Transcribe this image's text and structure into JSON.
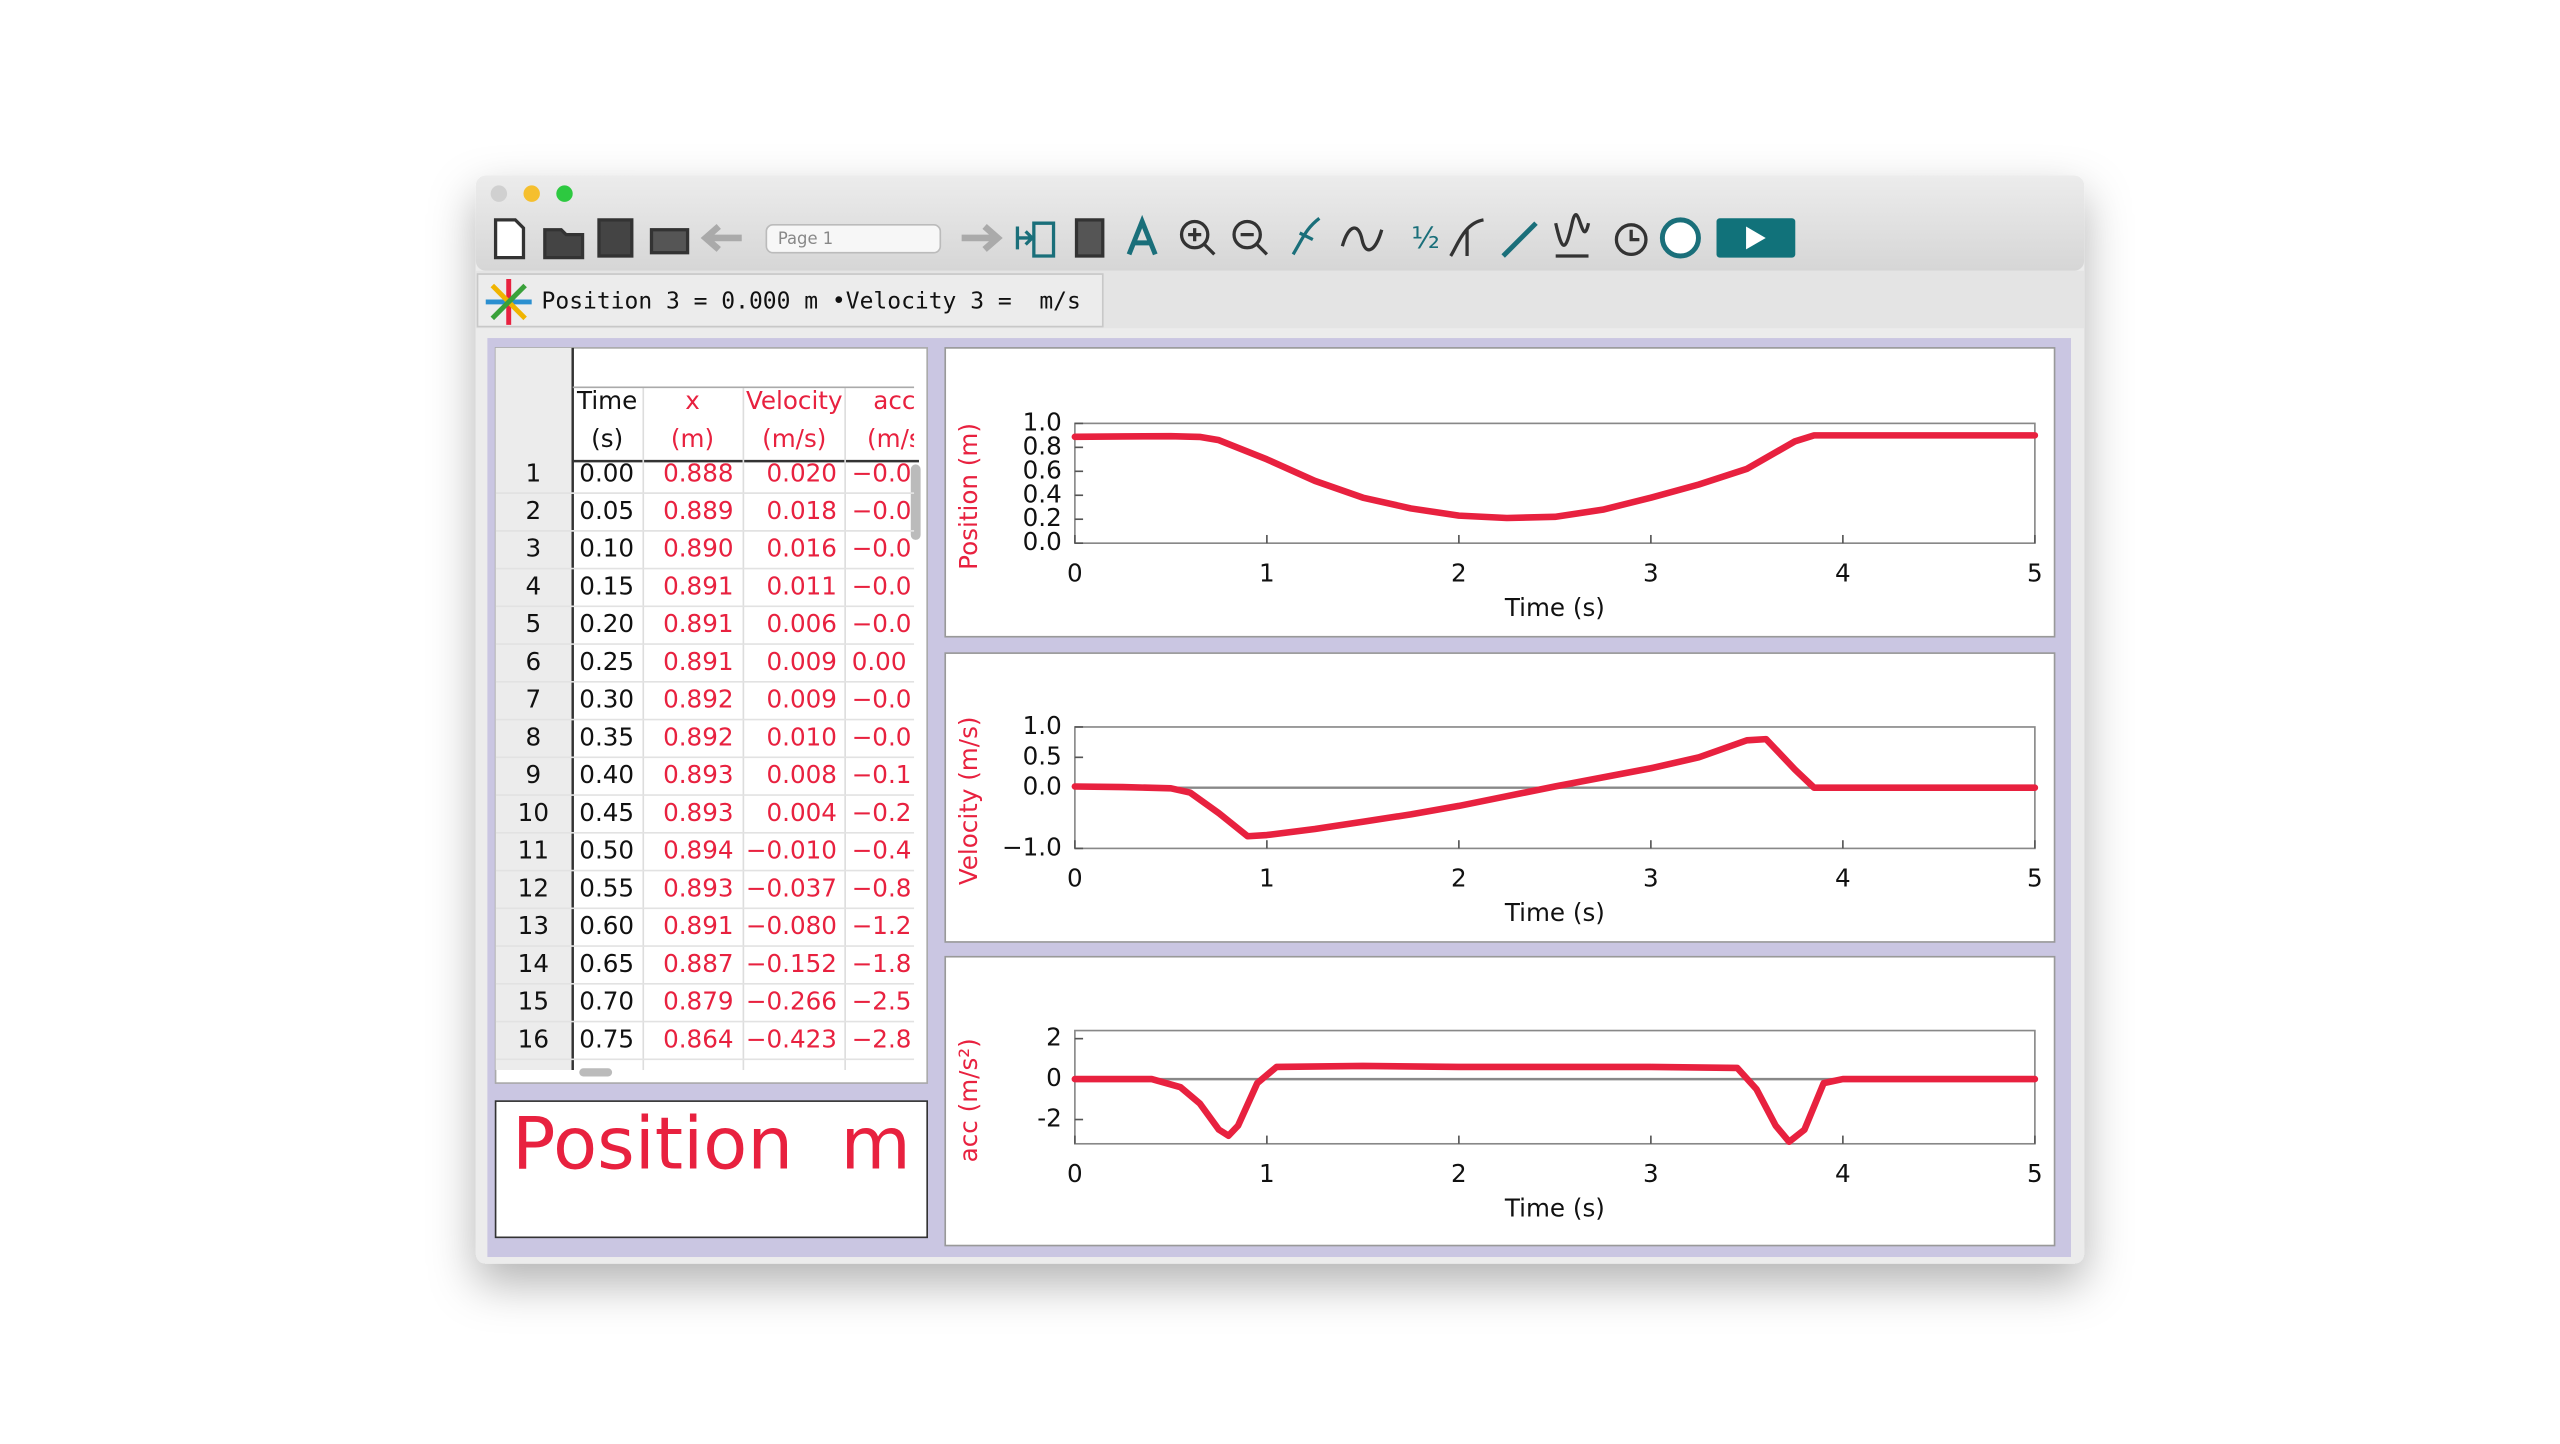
{
  "toolbar": {
    "page_selector": "Page 1"
  },
  "status_bar": {
    "text": "Position 3 = 0.000 m •Velocity 3 =  m/s"
  },
  "table": {
    "columns": [
      {
        "name": "Time",
        "unit": "(s)"
      },
      {
        "name": "x",
        "unit": "(m)"
      },
      {
        "name": "Velocity",
        "unit": "(m/s)"
      },
      {
        "name": "acc",
        "unit": "(m/s"
      }
    ],
    "row_labels": [
      "1",
      "2",
      "3",
      "4",
      "5",
      "6",
      "7",
      "8",
      "9",
      "10",
      "11",
      "12",
      "13",
      "14",
      "15",
      "16"
    ],
    "rows": [
      [
        "0.00",
        "0.888",
        "0.020",
        "−0.0"
      ],
      [
        "0.05",
        "0.889",
        "0.018",
        "−0.0"
      ],
      [
        "0.10",
        "0.890",
        "0.016",
        "−0.0"
      ],
      [
        "0.15",
        "0.891",
        "0.011",
        "−0.0"
      ],
      [
        "0.20",
        "0.891",
        "0.006",
        "−0.0"
      ],
      [
        "0.25",
        "0.891",
        "0.009",
        "0.00"
      ],
      [
        "0.30",
        "0.892",
        "0.009",
        "−0.0"
      ],
      [
        "0.35",
        "0.892",
        "0.010",
        "−0.0"
      ],
      [
        "0.40",
        "0.893",
        "0.008",
        "−0.1"
      ],
      [
        "0.45",
        "0.893",
        "0.004",
        "−0.2"
      ],
      [
        "0.50",
        "0.894",
        "−0.010",
        "−0.4"
      ],
      [
        "0.55",
        "0.893",
        "−0.037",
        "−0.8"
      ],
      [
        "0.60",
        "0.891",
        "−0.080",
        "−1.2"
      ],
      [
        "0.65",
        "0.887",
        "−0.152",
        "−1.8"
      ],
      [
        "0.70",
        "0.879",
        "−0.266",
        "−2.5"
      ],
      [
        "0.75",
        "0.864",
        "−0.423",
        "−2.8"
      ]
    ]
  },
  "meter": {
    "label": "Position",
    "unit": "m"
  },
  "chart_data": [
    {
      "type": "line",
      "x_label": "Time (s)",
      "y_label": "Position (m)",
      "xlim": [
        0,
        5
      ],
      "xticks": [
        0,
        1,
        2,
        3,
        4,
        5
      ],
      "ylim": [
        0,
        1
      ],
      "yticks": [
        {
          "value": 0,
          "label": "0.0"
        },
        {
          "value": 0.2,
          "label": "0.2"
        },
        {
          "value": 0.4,
          "label": "0.4"
        },
        {
          "value": 0.6,
          "label": "0.6"
        },
        {
          "value": 0.8,
          "label": "0.8"
        },
        {
          "value": 1,
          "label": "1.0"
        }
      ],
      "x": [
        0,
        0.25,
        0.5,
        0.65,
        0.75,
        1,
        1.25,
        1.5,
        1.75,
        2,
        2.25,
        2.5,
        2.75,
        3,
        3.25,
        3.5,
        3.75,
        3.85,
        4,
        4.5,
        5
      ],
      "series": [
        {
          "color": "#e8213f",
          "values": [
            0.888,
            0.891,
            0.893,
            0.887,
            0.86,
            0.7,
            0.52,
            0.38,
            0.29,
            0.23,
            0.21,
            0.22,
            0.28,
            0.38,
            0.49,
            0.62,
            0.85,
            0.9,
            0.9,
            0.9,
            0.9
          ]
        }
      ]
    },
    {
      "type": "line",
      "x_label": "Time (s)",
      "y_label": "Velocity (m/s)",
      "xlim": [
        0,
        5
      ],
      "xticks": [
        0,
        1,
        2,
        3,
        4,
        5
      ],
      "ylim": [
        -1,
        1
      ],
      "yticks": [
        {
          "value": -1,
          "label": "−1.0"
        },
        {
          "value": 0,
          "label": "0.0"
        },
        {
          "value": 0.5,
          "label": "0.5"
        },
        {
          "value": 1,
          "label": "1.0"
        }
      ],
      "x": [
        0,
        0.25,
        0.5,
        0.6,
        0.75,
        0.9,
        1,
        1.25,
        1.5,
        1.75,
        2,
        2.25,
        2.5,
        2.75,
        3,
        3.25,
        3.5,
        3.6,
        3.75,
        3.85,
        4,
        4.5,
        5
      ],
      "series": [
        {
          "color": "#e8213f",
          "values": [
            0.02,
            0.01,
            -0.01,
            -0.08,
            -0.42,
            -0.8,
            -0.78,
            -0.68,
            -0.56,
            -0.44,
            -0.3,
            -0.14,
            0.02,
            0.17,
            0.32,
            0.5,
            0.78,
            0.8,
            0.3,
            0,
            0,
            0,
            0
          ]
        }
      ]
    },
    {
      "type": "line",
      "x_label": "Time (s)",
      "y_label": "acc (m/s²)",
      "xlim": [
        0,
        5
      ],
      "xticks": [
        0,
        1,
        2,
        3,
        4,
        5
      ],
      "ylim": [
        -3.2,
        2.4
      ],
      "yticks": [
        -2,
        0,
        2
      ],
      "x": [
        0,
        0.4,
        0.55,
        0.65,
        0.75,
        0.8,
        0.85,
        0.95,
        1.05,
        1.5,
        2,
        2.5,
        3,
        3.45,
        3.55,
        3.65,
        3.72,
        3.8,
        3.9,
        4,
        5
      ],
      "series": [
        {
          "color": "#e8213f",
          "values": [
            0,
            0,
            -0.4,
            -1.2,
            -2.5,
            -2.8,
            -2.3,
            -0.2,
            0.6,
            0.65,
            0.6,
            0.6,
            0.6,
            0.55,
            -0.5,
            -2.3,
            -3.1,
            -2.5,
            -0.2,
            0,
            0
          ]
        }
      ]
    }
  ]
}
